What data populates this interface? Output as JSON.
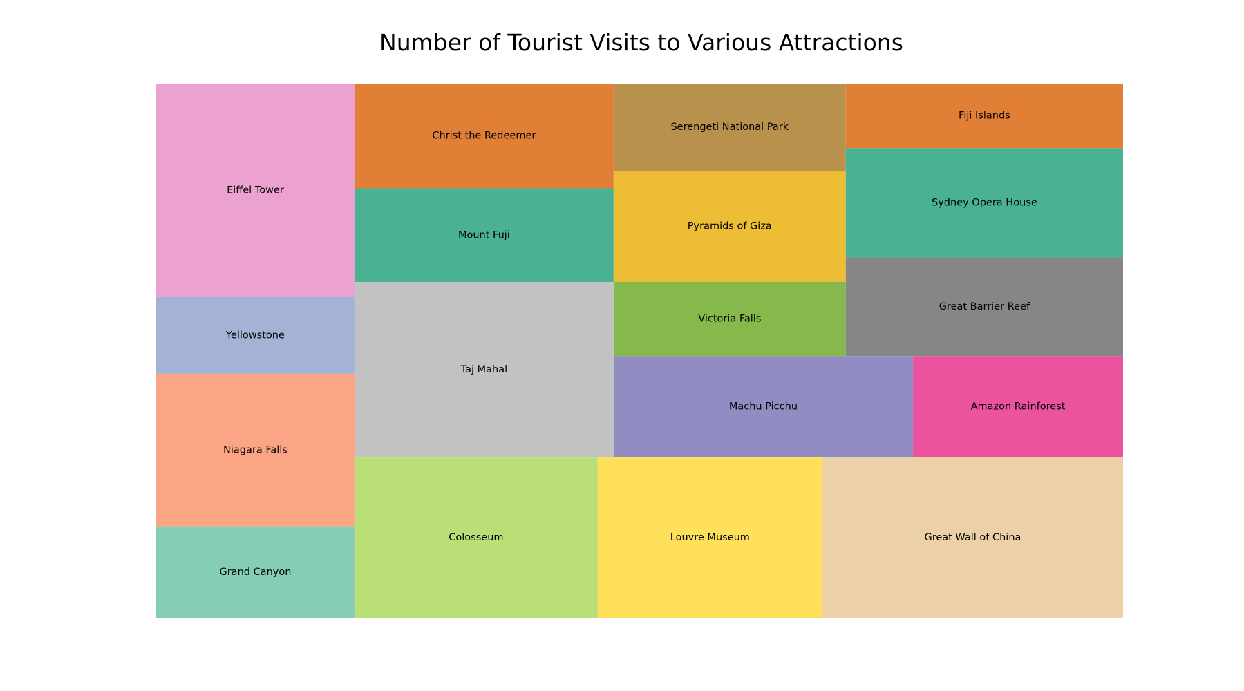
{
  "chart_data": {
    "type": "treemap",
    "title": "Number of Tourist Visits to Various Attractions",
    "value_note": "values are relative areas (share of total, percent) estimated from the tiles",
    "tiles": [
      {
        "label": "Eiffel Tower",
        "value": 7.35,
        "color": "#eba2d0"
      },
      {
        "label": "Yellowstone",
        "value": 2.64,
        "color": "#a3b2d5"
      },
      {
        "label": "Niagara Falls",
        "value": 5.25,
        "color": "#fca584"
      },
      {
        "label": "Grand Canyon",
        "value": 3.15,
        "color": "#86cdb5"
      },
      {
        "label": "Christ the Redeemer",
        "value": 4.7,
        "color": "#e17f37"
      },
      {
        "label": "Mount Fuji",
        "value": 4.21,
        "color": "#4ab292"
      },
      {
        "label": "Taj Mahal",
        "value": 7.88,
        "color": "#c2c2c2"
      },
      {
        "label": "Serengeti National Park",
        "value": 3.69,
        "color": "#b8924d"
      },
      {
        "label": "Pyramids of Giza",
        "value": 4.71,
        "color": "#ecbd35"
      },
      {
        "label": "Victoria Falls",
        "value": 3.14,
        "color": "#86b84b"
      },
      {
        "label": "Fiji Islands",
        "value": 3.09,
        "color": "#e17f37"
      },
      {
        "label": "Sydney Opera House",
        "value": 5.24,
        "color": "#4ab292"
      },
      {
        "label": "Great Barrier Reef",
        "value": 4.73,
        "color": "#868686"
      },
      {
        "label": "Machu Picchu",
        "value": 5.23,
        "color": "#918cc2"
      },
      {
        "label": "Amazon Rainforest",
        "value": 3.67,
        "color": "#ec539f"
      },
      {
        "label": "Colosseum",
        "value": 6.81,
        "color": "#badf77"
      },
      {
        "label": "Louvre Museum",
        "value": 6.29,
        "color": "#ffe05a"
      },
      {
        "label": "Great Wall of China",
        "value": 8.42,
        "color": "#ebd0a8"
      }
    ]
  }
}
